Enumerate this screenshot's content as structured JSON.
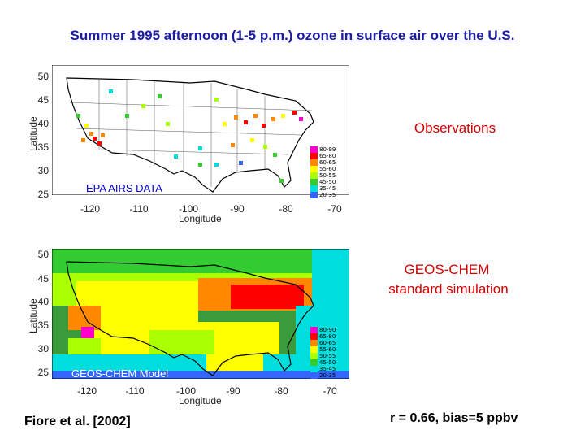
{
  "title": "Summer 1995 afternoon (1-5 p.m.) ozone in surface air over the U.S.",
  "axes": {
    "latitude_label": "Latitude",
    "longitude_label": "Longitude",
    "lat_ticks": [
      "50",
      "45",
      "40",
      "35",
      "30",
      "25"
    ],
    "lon_ticks": [
      "-120",
      "-110",
      "-100",
      "-90",
      "-80",
      "-70"
    ]
  },
  "panel_top": {
    "side_label": "Observations",
    "inmap_label": "EPA AIRS DATA",
    "legend": [
      {
        "range": "80-99",
        "color": "#ff00cc"
      },
      {
        "range": "65-80",
        "color": "#ff0000"
      },
      {
        "range": "60-65",
        "color": "#ff8800"
      },
      {
        "range": "55-60",
        "color": "#ffff00"
      },
      {
        "range": "50-55",
        "color": "#aaff00"
      },
      {
        "range": "45-50",
        "color": "#33cc33"
      },
      {
        "range": "35-45",
        "color": "#00dddd"
      },
      {
        "range": "20-35",
        "color": "#3366ff"
      }
    ]
  },
  "panel_bottom": {
    "side_label_line1": "GEOS-CHEM",
    "side_label_line2": "standard simulation",
    "inmap_label": "GEOS-CHEM Model",
    "legend": [
      {
        "range": "80-90",
        "color": "#ff00cc"
      },
      {
        "range": "65-80",
        "color": "#ff0000"
      },
      {
        "range": "60-65",
        "color": "#ff8800"
      },
      {
        "range": "55-60",
        "color": "#ffff00"
      },
      {
        "range": "50-55",
        "color": "#aaff00"
      },
      {
        "range": "45-50",
        "color": "#33cc33"
      },
      {
        "range": "35-45",
        "color": "#00dddd"
      },
      {
        "range": "20-35",
        "color": "#3366ff"
      }
    ]
  },
  "footer": {
    "citation": "Fiore et al. [2002]",
    "stats": "r = 0.66, bias=5 ppbv"
  }
}
